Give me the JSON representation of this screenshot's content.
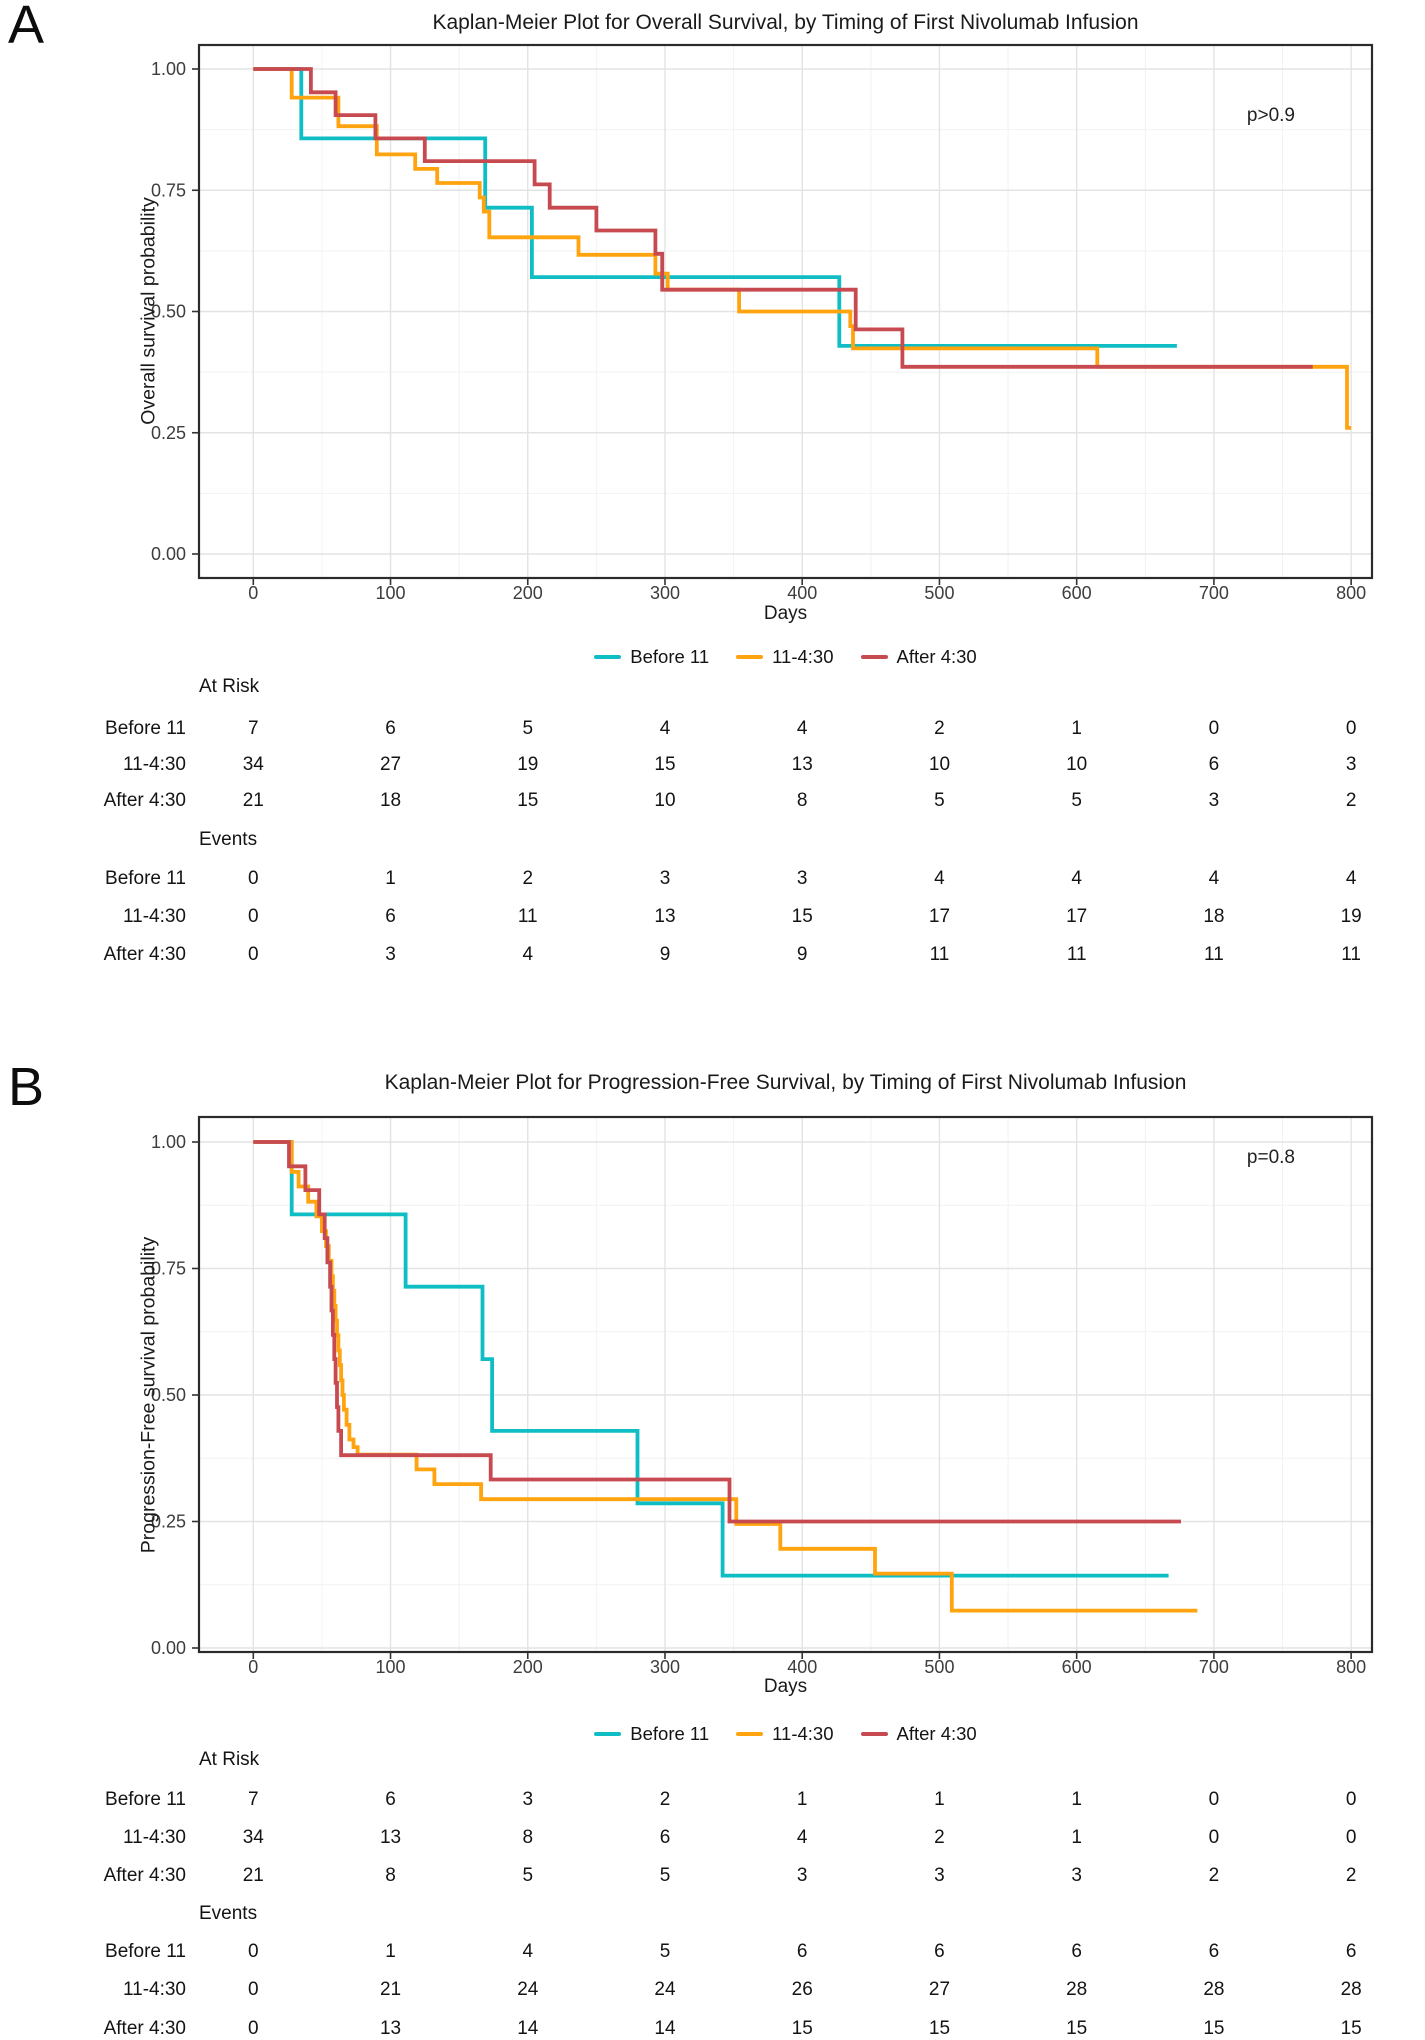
{
  "figure": {
    "background": "#FFFFFF"
  },
  "style_colors": {
    "grid_major": "#E3E3E3",
    "grid_minor": "#F2F2F2",
    "panel_border": "#2B2B2B",
    "tick_color": "#333333"
  },
  "chart_data": [
    {
      "panel_letter": "A",
      "type": "line",
      "subtype": "kaplan-meier-step",
      "title": "Kaplan-Meier Plot for Overall Survival, by Timing of First Nivolumab Infusion",
      "xlabel": "Days",
      "ylabel": "Overall survival probability",
      "p_value_label": "p>0.9",
      "xlim": [
        0,
        800
      ],
      "ylim": [
        0,
        1
      ],
      "grid": true,
      "legend_position": "bottom",
      "x_ticks": [
        0,
        100,
        200,
        300,
        400,
        500,
        600,
        700,
        800
      ],
      "y_ticks": [
        {
          "v": 0,
          "label": "0.00"
        },
        {
          "v": 0.25,
          "label": "0.25"
        },
        {
          "v": 0.5,
          "label": "0.50"
        },
        {
          "v": 0.75,
          "label": "0.75"
        },
        {
          "v": 1,
          "label": "1.00"
        }
      ],
      "series": [
        {
          "name": "Before 11",
          "color": "#0FBEC4",
          "steps": [
            [
              35,
              0.857
            ],
            [
              169,
              0.714
            ],
            [
              203,
              0.571
            ],
            [
              427,
              0.429
            ]
          ],
          "end_day": 673
        },
        {
          "name": "11-4:30",
          "color": "#FFA30F",
          "steps": [
            [
              28,
              0.941
            ],
            [
              62,
              0.882
            ],
            [
              90,
              0.824
            ],
            [
              118,
              0.794
            ],
            [
              134,
              0.765
            ],
            [
              165,
              0.735
            ],
            [
              168,
              0.706
            ],
            [
              172,
              0.653
            ],
            [
              237,
              0.617
            ],
            [
              293,
              0.578
            ],
            [
              302,
              0.545
            ],
            [
              354,
              0.5
            ],
            [
              435,
              0.47
            ],
            [
              437,
              0.424
            ],
            [
              615,
              0.386
            ],
            [
              797,
              0.26
            ]
          ],
          "end_day": 800
        },
        {
          "name": "After 4:30",
          "color": "#C84A51",
          "steps": [
            [
              42,
              0.952
            ],
            [
              60,
              0.905
            ],
            [
              89,
              0.857
            ],
            [
              125,
              0.81
            ],
            [
              205,
              0.762
            ],
            [
              216,
              0.714
            ],
            [
              250,
              0.667
            ],
            [
              293,
              0.619
            ],
            [
              298,
              0.545
            ],
            [
              439,
              0.463
            ],
            [
              473,
              0.386
            ]
          ],
          "end_day": 772
        }
      ],
      "risk_table": {
        "time_points": [
          0,
          100,
          200,
          300,
          400,
          500,
          600,
          700,
          800
        ],
        "at_risk_label": "At Risk",
        "events_label": "Events",
        "at_risk": [
          {
            "label": "Before 11",
            "values": [
              7,
              6,
              5,
              4,
              4,
              2,
              1,
              0,
              0
            ]
          },
          {
            "label": "11-4:30",
            "values": [
              34,
              27,
              19,
              15,
              13,
              10,
              10,
              6,
              3
            ]
          },
          {
            "label": "After 4:30",
            "values": [
              21,
              18,
              15,
              10,
              8,
              5,
              5,
              3,
              2
            ]
          }
        ],
        "events": [
          {
            "label": "Before 11",
            "values": [
              0,
              1,
              2,
              3,
              3,
              4,
              4,
              4,
              4
            ]
          },
          {
            "label": "11-4:30",
            "values": [
              0,
              6,
              11,
              13,
              15,
              17,
              17,
              18,
              19
            ]
          },
          {
            "label": "After 4:30",
            "values": [
              0,
              3,
              4,
              9,
              9,
              11,
              11,
              11,
              11
            ]
          }
        ]
      }
    },
    {
      "panel_letter": "B",
      "type": "line",
      "subtype": "kaplan-meier-step",
      "title": "Kaplan-Meier Plot for Progression-Free Survival, by Timing of First Nivolumab Infusion",
      "xlabel": "Days",
      "ylabel": "Progression-Free survival probability",
      "p_value_label": "p=0.8",
      "xlim": [
        0,
        800
      ],
      "ylim": [
        0,
        1
      ],
      "grid": true,
      "legend_position": "bottom",
      "x_ticks": [
        0,
        100,
        200,
        300,
        400,
        500,
        600,
        700,
        800
      ],
      "y_ticks": [
        {
          "v": 0,
          "label": "0.00"
        },
        {
          "v": 0.25,
          "label": "0.25"
        },
        {
          "v": 0.5,
          "label": "0.50"
        },
        {
          "v": 0.75,
          "label": "0.75"
        },
        {
          "v": 1,
          "label": "1.00"
        }
      ],
      "series": [
        {
          "name": "Before 11",
          "color": "#0FBEC4",
          "steps": [
            [
              28,
              0.857
            ],
            [
              111,
              0.714
            ],
            [
              167,
              0.571
            ],
            [
              174,
              0.429
            ],
            [
              280,
              0.286
            ],
            [
              342,
              0.143
            ]
          ],
          "end_day": 667
        },
        {
          "name": "11-4:30",
          "color": "#FFA30F",
          "steps": [
            [
              28,
              0.941
            ],
            [
              33,
              0.912
            ],
            [
              40,
              0.882
            ],
            [
              46,
              0.853
            ],
            [
              50,
              0.824
            ],
            [
              53,
              0.794
            ],
            [
              55,
              0.765
            ],
            [
              57,
              0.735
            ],
            [
              58,
              0.706
            ],
            [
              59,
              0.676
            ],
            [
              60,
              0.647
            ],
            [
              61,
              0.618
            ],
            [
              62,
              0.588
            ],
            [
              63,
              0.559
            ],
            [
              64,
              0.529
            ],
            [
              65,
              0.5
            ],
            [
              66,
              0.471
            ],
            [
              68,
              0.441
            ],
            [
              70,
              0.412
            ],
            [
              73,
              0.397
            ],
            [
              76,
              0.382
            ],
            [
              119,
              0.353
            ],
            [
              132,
              0.324
            ],
            [
              166,
              0.294
            ],
            [
              352,
              0.245
            ],
            [
              384,
              0.196
            ],
            [
              453,
              0.147
            ],
            [
              509,
              0.074
            ]
          ],
          "end_day": 688
        },
        {
          "name": "After 4:30",
          "color": "#C84A51",
          "steps": [
            [
              26,
              0.952
            ],
            [
              38,
              0.905
            ],
            [
              48,
              0.857
            ],
            [
              52,
              0.81
            ],
            [
              54,
              0.762
            ],
            [
              56,
              0.714
            ],
            [
              57,
              0.667
            ],
            [
              58,
              0.619
            ],
            [
              59,
              0.571
            ],
            [
              60,
              0.524
            ],
            [
              61,
              0.476
            ],
            [
              62,
              0.429
            ],
            [
              64,
              0.381
            ],
            [
              173,
              0.333
            ],
            [
              347,
              0.25
            ]
          ],
          "end_day": 676
        }
      ],
      "risk_table": {
        "time_points": [
          0,
          100,
          200,
          300,
          400,
          500,
          600,
          700,
          800
        ],
        "at_risk_label": "At Risk",
        "events_label": "Events",
        "at_risk": [
          {
            "label": "Before 11",
            "values": [
              7,
              6,
              3,
              2,
              1,
              1,
              1,
              0,
              0
            ]
          },
          {
            "label": "11-4:30",
            "values": [
              34,
              13,
              8,
              6,
              4,
              2,
              1,
              0,
              0
            ]
          },
          {
            "label": "After 4:30",
            "values": [
              21,
              8,
              5,
              5,
              3,
              3,
              3,
              2,
              2
            ]
          }
        ],
        "events": [
          {
            "label": "Before 11",
            "values": [
              0,
              1,
              4,
              5,
              6,
              6,
              6,
              6,
              6
            ]
          },
          {
            "label": "11-4:30",
            "values": [
              0,
              21,
              24,
              24,
              26,
              27,
              28,
              28,
              28
            ]
          },
          {
            "label": "After 4:30",
            "values": [
              0,
              13,
              14,
              14,
              15,
              15,
              15,
              15,
              15
            ]
          }
        ]
      }
    }
  ]
}
